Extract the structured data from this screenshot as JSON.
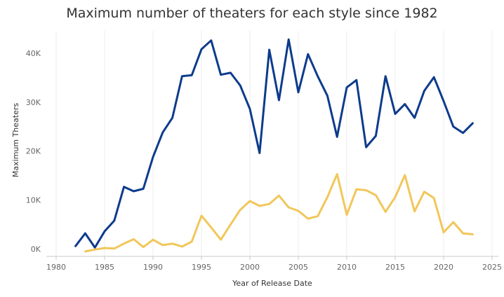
{
  "chart_data": {
    "type": "line",
    "title": "Maximum number of theaters for each style since 1982",
    "xlabel": "Year of Release Date",
    "ylabel": "Maximum Theaters",
    "xlim": [
      1980,
      2025
    ],
    "ylim": [
      0,
      45000
    ],
    "x_ticks": [
      1980,
      1985,
      1990,
      1995,
      2000,
      2005,
      2010,
      2015,
      2020,
      2025
    ],
    "x_tick_labels": [
      "1980",
      "1985",
      "1990",
      "1995",
      "2000",
      "2005",
      "2010",
      "2015",
      "2020",
      "2025"
    ],
    "y_ticks": [
      0,
      10000,
      20000,
      30000,
      40000
    ],
    "y_tick_labels": [
      "0K",
      "10K",
      "20K",
      "30K",
      "40K"
    ],
    "grid": {
      "x": true,
      "y": false
    },
    "legend": "none",
    "series": [
      {
        "color": "#0d3b8c",
        "x": [
          1982,
          1983,
          1984,
          1985,
          1986,
          1987,
          1988,
          1989,
          1990,
          1991,
          1992,
          1993,
          1994,
          1995,
          1996,
          1997,
          1998,
          1999,
          2000,
          2001,
          2002,
          2003,
          2004,
          2005,
          2006,
          2007,
          2008,
          2009,
          2010,
          2011,
          2012,
          2013,
          2014,
          2015,
          2016,
          2017,
          2018,
          2019,
          2020,
          2021,
          2022,
          2023
        ],
        "values": [
          600,
          3200,
          300,
          3600,
          5800,
          12700,
          11800,
          12300,
          18800,
          23800,
          26800,
          35300,
          35500,
          40800,
          42600,
          35600,
          36000,
          33400,
          28600,
          19600,
          40700,
          30400,
          42800,
          32000,
          39800,
          35300,
          31300,
          22900,
          33000,
          34500,
          20800,
          23100,
          35300,
          27600,
          29600,
          26800,
          32300,
          35100,
          30200,
          25000,
          23700,
          25700
        ]
      },
      {
        "color": "#f1c75a",
        "x": [
          1983,
          1984,
          1985,
          1986,
          1987,
          1988,
          1989,
          1990,
          1991,
          1992,
          1993,
          1994,
          1995,
          1996,
          1997,
          1998,
          1999,
          2000,
          2001,
          2002,
          2003,
          2004,
          2005,
          2006,
          2007,
          2008,
          2009,
          2010,
          2011,
          2012,
          2013,
          2014,
          2015,
          2016,
          2017,
          2018,
          2019,
          2020,
          2021,
          2022,
          2023
        ],
        "values": [
          -500,
          -100,
          200,
          100,
          1100,
          2000,
          400,
          1900,
          800,
          1100,
          500,
          1500,
          6800,
          4400,
          1900,
          5000,
          8000,
          9800,
          8800,
          9200,
          10900,
          8500,
          7800,
          6200,
          6700,
          10600,
          15300,
          7000,
          12200,
          12000,
          11000,
          7600,
          10600,
          15100,
          7700,
          11700,
          10400,
          3400,
          5500,
          3200,
          3000
        ]
      }
    ]
  }
}
